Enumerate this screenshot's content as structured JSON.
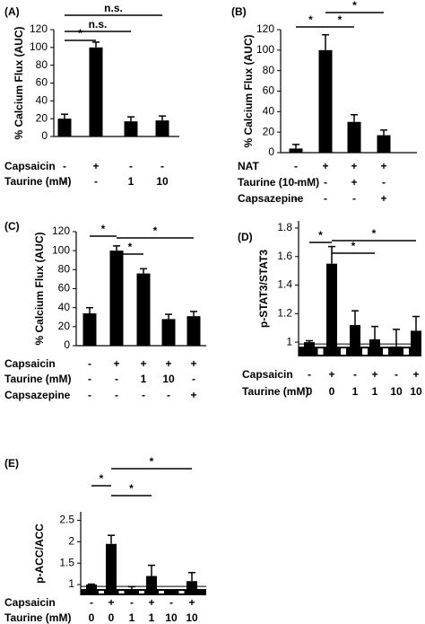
{
  "chart_data": [
    {
      "type": "bar",
      "panel": "(A)",
      "ylabel": "% Calcium Flux (AUC)",
      "ylim": [
        0,
        120
      ],
      "yticks": [
        0,
        20,
        40,
        60,
        80,
        100,
        120
      ],
      "values": [
        20,
        100,
        17,
        18
      ],
      "errors": [
        5,
        6,
        5,
        5
      ],
      "color": "#000000",
      "axis_break": false,
      "condition_rows": [
        {
          "label": "Capsaicin",
          "values": [
            "-",
            "+",
            "-",
            "-"
          ]
        },
        {
          "label": "Taurine (mM)",
          "values": [
            "-",
            "-",
            "1",
            "10"
          ]
        }
      ],
      "comparisons": [
        {
          "between": [
            0,
            1
          ],
          "label": "*"
        },
        {
          "between": [
            0,
            2
          ],
          "label": "n.s."
        },
        {
          "between": [
            0,
            3
          ],
          "label": "n.s."
        }
      ]
    },
    {
      "type": "bar",
      "panel": "(B)",
      "ylabel": "% Calcium Flux (AUC)",
      "ylim": [
        0,
        120
      ],
      "yticks": [
        0,
        20,
        40,
        60,
        80,
        100,
        120
      ],
      "values": [
        4,
        100,
        30,
        17
      ],
      "errors": [
        4,
        15,
        7,
        5
      ],
      "color": "#000000",
      "axis_break": false,
      "condition_rows": [
        {
          "label": "NAT",
          "values": [
            "-",
            "+",
            "+",
            "+"
          ]
        },
        {
          "label": "Taurine (10 mM)",
          "values": [
            "-",
            "-",
            "+",
            "-"
          ]
        },
        {
          "label": "Capsazepine",
          "values": [
            "-",
            "-",
            "-",
            "+"
          ]
        }
      ],
      "comparisons": [
        {
          "between": [
            0,
            1
          ],
          "label": "*"
        },
        {
          "between": [
            1,
            2
          ],
          "label": "*"
        },
        {
          "between": [
            1,
            3
          ],
          "label": "*"
        }
      ]
    },
    {
      "type": "bar",
      "panel": "(C)",
      "ylabel": "% Calcium Flux (AUC)",
      "ylim": [
        0,
        120
      ],
      "yticks": [
        0,
        20,
        40,
        60,
        80,
        100,
        120
      ],
      "values": [
        34,
        100,
        76,
        28,
        31
      ],
      "errors": [
        6,
        5,
        5,
        5,
        5
      ],
      "color": "#000000",
      "axis_break": false,
      "condition_rows": [
        {
          "label": "Capsaicin",
          "values": [
            "-",
            "+",
            "+",
            "+",
            "+"
          ]
        },
        {
          "label": "Taurine (mM)",
          "values": [
            "-",
            "-",
            "1",
            "10",
            "-"
          ]
        },
        {
          "label": "Capsazepine",
          "values": [
            "-",
            "-",
            "-",
            "-",
            "+"
          ]
        }
      ],
      "comparisons": [
        {
          "between": [
            0,
            1
          ],
          "label": "*"
        },
        {
          "between": [
            1,
            4
          ],
          "label": "*"
        },
        {
          "between": [
            1,
            2
          ],
          "label": "*"
        }
      ]
    },
    {
      "type": "bar",
      "panel": "(D)",
      "ylabel": "p-STAT3/STAT3",
      "ylim": [
        0.9,
        1.85
      ],
      "yticks": [
        1,
        1.2,
        1.4,
        1.6,
        1.8
      ],
      "values": [
        1.0,
        1.55,
        1.12,
        1.02,
        0.97,
        1.08
      ],
      "errors": [
        0.01,
        0.12,
        0.1,
        0.09,
        0.12,
        0.1
      ],
      "color": "#000000",
      "axis_break": true,
      "condition_rows": [
        {
          "label": "Capsaicin",
          "values": [
            "-",
            "+",
            "-",
            "+",
            "-",
            "+"
          ]
        },
        {
          "label": "Taurine (mM)",
          "values": [
            "0",
            "0",
            "1",
            "1",
            "10",
            "10"
          ]
        }
      ],
      "comparisons": [
        {
          "between": [
            0,
            1
          ],
          "label": "*"
        },
        {
          "between": [
            1,
            3
          ],
          "label": "*"
        },
        {
          "between": [
            1,
            5
          ],
          "label": "*"
        }
      ]
    },
    {
      "type": "bar",
      "panel": "(E)",
      "ylabel": "p-ACC/ACC",
      "ylim": [
        0.75,
        2.7
      ],
      "yticks": [
        1,
        1.5,
        2,
        2.5
      ],
      "values": [
        1.0,
        1.95,
        0.8,
        1.2,
        0.82,
        1.08
      ],
      "errors": [
        0.01,
        0.2,
        0.15,
        0.25,
        0.04,
        0.2
      ],
      "color": "#000000",
      "axis_break": true,
      "condition_rows": [
        {
          "label": "Capsaicin",
          "values": [
            "-",
            "+",
            "-",
            "+",
            "-",
            "+"
          ]
        },
        {
          "label": "Taurine (mM)",
          "values": [
            "0",
            "0",
            "1",
            "1",
            "10",
            "10"
          ]
        }
      ],
      "comparisons": [
        {
          "between": [
            0,
            1
          ],
          "label": "*"
        },
        {
          "between": [
            1,
            3
          ],
          "label": "*"
        },
        {
          "between": [
            1,
            5
          ],
          "label": "*"
        }
      ]
    }
  ]
}
